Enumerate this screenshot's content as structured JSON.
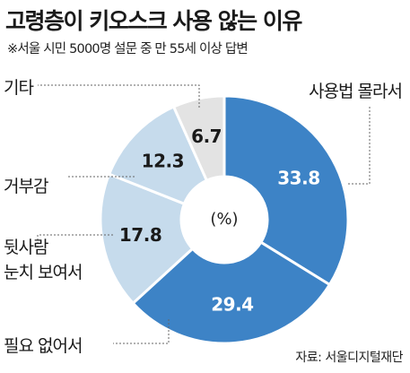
{
  "title": "고령층이 키오스크 사용 않는 이유",
  "subtitle": "※서울 시민 5000명 설문 중 만 55세 이상 답변",
  "source": "자료: 서울디지털재단",
  "chart_data": {
    "type": "pie",
    "donut": true,
    "unit": "(%)",
    "slices": [
      {
        "label": "사용법 몰라서",
        "value": 33.8,
        "color": "#3d83c6",
        "text_color": "#ffffff"
      },
      {
        "label": "필요 없어서",
        "value": 29.4,
        "color": "#3d83c6",
        "text_color": "#ffffff"
      },
      {
        "label": "뒷사람 눈치 보여서",
        "value": 17.8,
        "color": "#c6dbec",
        "text_color": "#1a1a1a"
      },
      {
        "label": "거부감",
        "value": 12.3,
        "color": "#c6dbec",
        "text_color": "#1a1a1a"
      },
      {
        "label": "기타",
        "value": 6.7,
        "color": "#e3e3e3",
        "text_color": "#1a1a1a"
      }
    ]
  }
}
